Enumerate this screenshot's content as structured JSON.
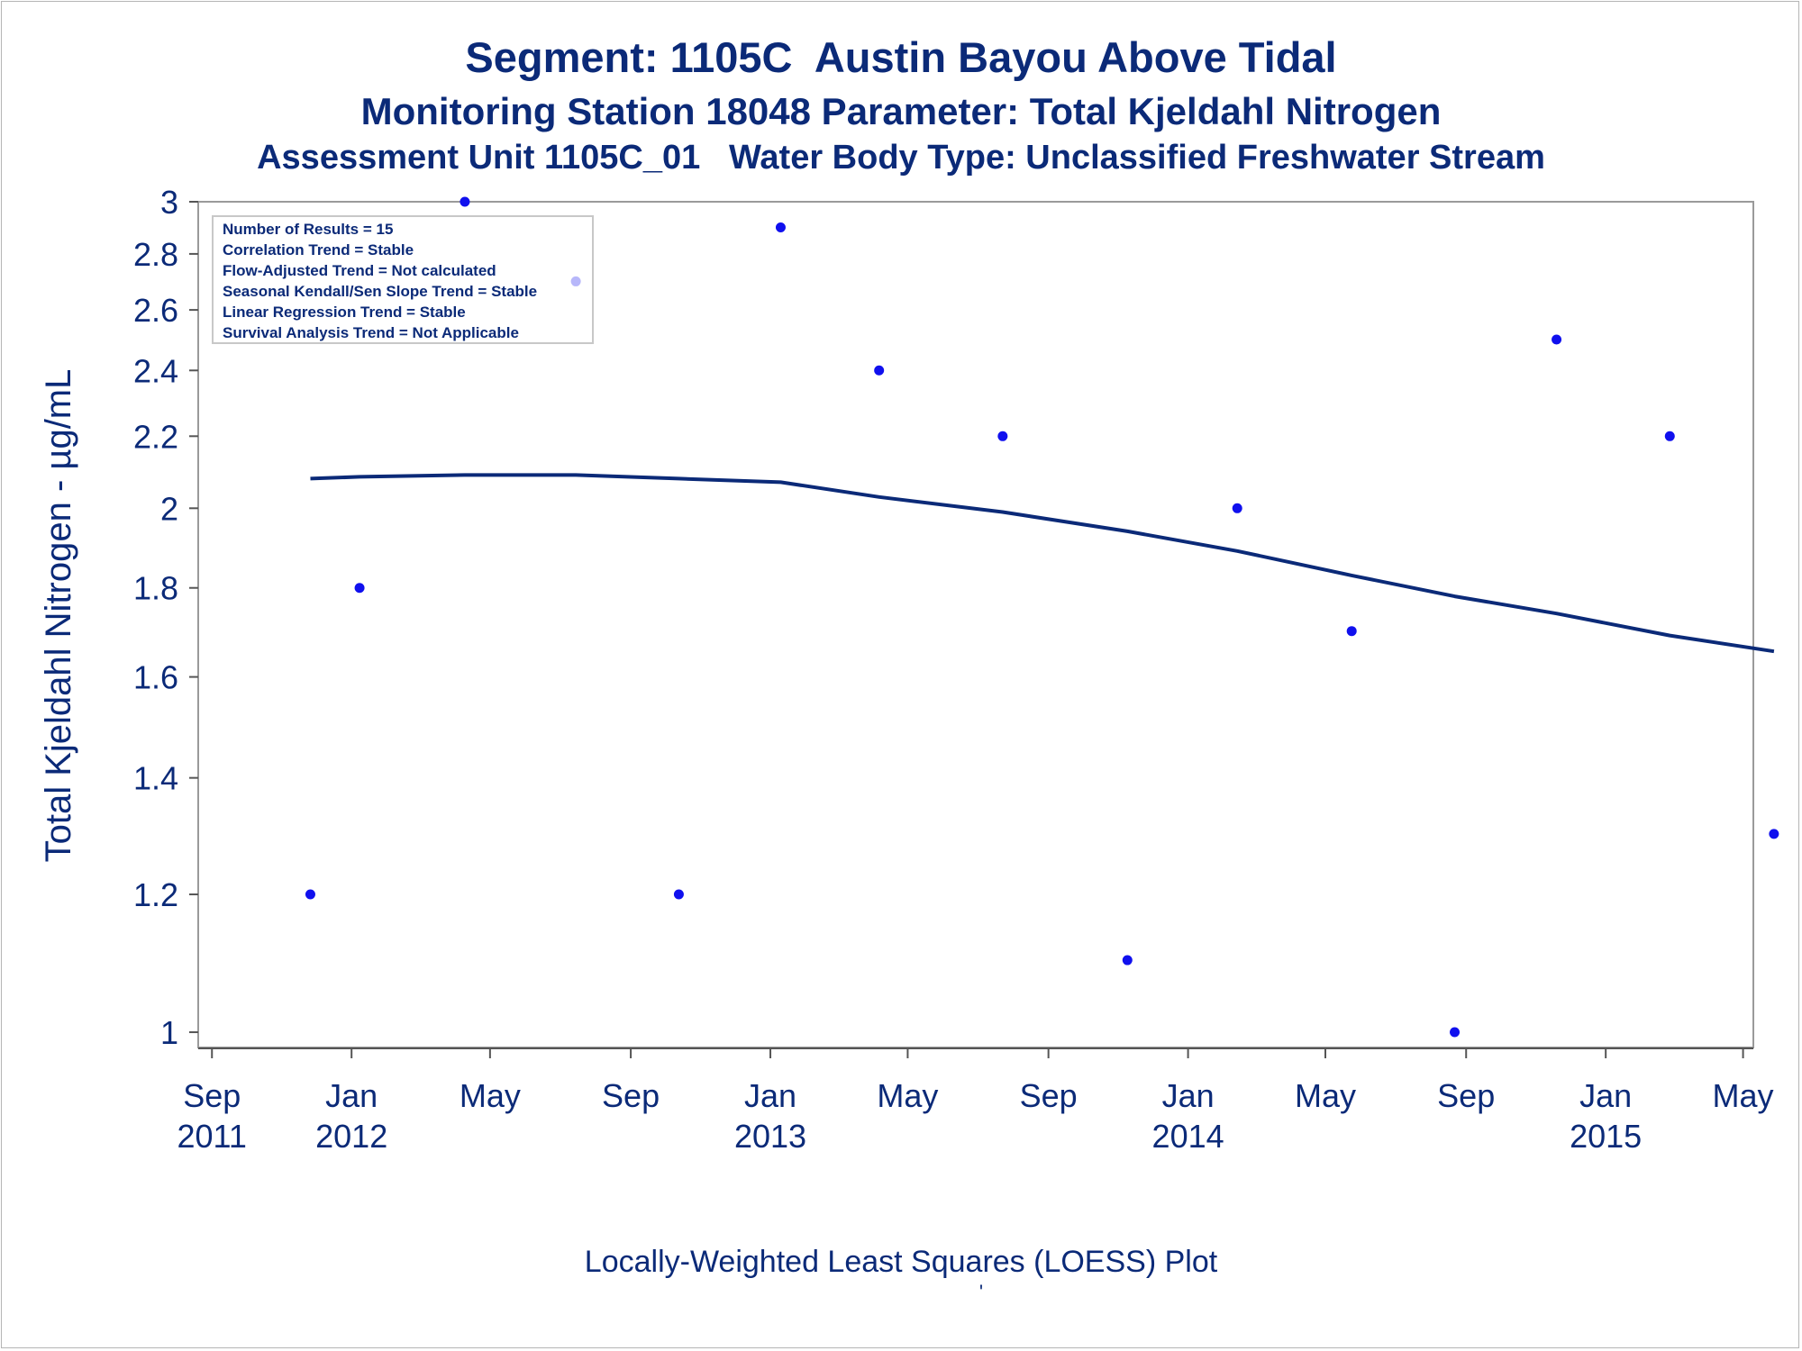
{
  "titles": {
    "line1": "Segment: 1105C  Austin Bayou Above Tidal",
    "line2": "Monitoring Station 18048 Parameter: Total Kjeldahl Nitrogen",
    "line3": "Assessment Unit 1105C_01   Water Body Type: Unclassified Freshwater Stream"
  },
  "footer": {
    "label": "Locally-Weighted Least Squares (LOESS) Plot",
    "mark": "'"
  },
  "stats_box": {
    "lines": [
      "Number of Results = 15",
      "Correlation Trend = Stable",
      "Flow-Adjusted Trend = Not calculated",
      "Seasonal Kendall/Sen Slope Trend = Stable",
      "Linear Regression Trend = Stable",
      "Survival Analysis Trend = Not Applicable"
    ]
  },
  "colors": {
    "text": "#0b2a78",
    "points": "#1010ee",
    "loess_line": "#0b2a78",
    "frame": "#9a9a9a"
  },
  "chart_data": {
    "type": "scatter",
    "title": "Segment: 1105C  Austin Bayou Above Tidal",
    "xlabel": "",
    "ylabel": "Total Kjeldahl Nitrogen -  µg/mL",
    "y_scale": "log",
    "ylim": [
      0.98,
      3.0
    ],
    "xlim": [
      "2011-08-20",
      "2015-05-10"
    ],
    "grid": false,
    "y_ticks": [
      "1",
      "1.2",
      "1.4",
      "1.6",
      "1.8",
      "2",
      "2.2",
      "2.4",
      "2.6",
      "2.8",
      "3"
    ],
    "x_ticks": [
      {
        "date": "2011-09-01",
        "label": [
          "Sep",
          "2011"
        ]
      },
      {
        "date": "2012-01-01",
        "label": [
          "Jan",
          "2012"
        ]
      },
      {
        "date": "2012-05-01",
        "label": [
          "May",
          ""
        ]
      },
      {
        "date": "2012-09-01",
        "label": [
          "Sep",
          ""
        ]
      },
      {
        "date": "2013-01-01",
        "label": [
          "Jan",
          "2013"
        ]
      },
      {
        "date": "2013-05-01",
        "label": [
          "May",
          ""
        ]
      },
      {
        "date": "2013-09-01",
        "label": [
          "Sep",
          ""
        ]
      },
      {
        "date": "2014-01-01",
        "label": [
          "Jan",
          "2014"
        ]
      },
      {
        "date": "2014-05-01",
        "label": [
          "May",
          ""
        ]
      },
      {
        "date": "2014-09-01",
        "label": [
          "Sep",
          ""
        ]
      },
      {
        "date": "2015-01-01",
        "label": [
          "Jan",
          "2015"
        ]
      },
      {
        "date": "2015-05-01",
        "label": [
          "May",
          ""
        ]
      }
    ],
    "series": [
      {
        "type": "scatter",
        "points": [
          {
            "x": "2011-11-26",
            "y": 1.2
          },
          {
            "x": "2012-01-08",
            "y": 1.8
          },
          {
            "x": "2012-04-09",
            "y": 3.0
          },
          {
            "x": "2012-07-15",
            "y": 2.7
          },
          {
            "x": "2012-10-13",
            "y": 1.2
          },
          {
            "x": "2013-01-10",
            "y": 2.9
          },
          {
            "x": "2013-04-06",
            "y": 2.4
          },
          {
            "x": "2013-07-23",
            "y": 2.2
          },
          {
            "x": "2013-11-09",
            "y": 1.1
          },
          {
            "x": "2014-02-13",
            "y": 2.0
          },
          {
            "x": "2014-05-24",
            "y": 1.7
          },
          {
            "x": "2014-08-22",
            "y": 1.0
          },
          {
            "x": "2014-11-19",
            "y": 2.5
          },
          {
            "x": "2015-02-26",
            "y": 2.2
          },
          {
            "x": "2015-05-28",
            "y": 1.3
          }
        ]
      },
      {
        "type": "line",
        "points": [
          {
            "x": "2011-11-26",
            "y": 2.08
          },
          {
            "x": "2012-01-08",
            "y": 2.085
          },
          {
            "x": "2012-04-09",
            "y": 2.09
          },
          {
            "x": "2012-07-15",
            "y": 2.09
          },
          {
            "x": "2012-10-13",
            "y": 2.08
          },
          {
            "x": "2013-01-10",
            "y": 2.07
          },
          {
            "x": "2013-04-06",
            "y": 2.03
          },
          {
            "x": "2013-07-23",
            "y": 1.99
          },
          {
            "x": "2013-11-09",
            "y": 1.94
          },
          {
            "x": "2014-02-13",
            "y": 1.89
          },
          {
            "x": "2014-05-24",
            "y": 1.83
          },
          {
            "x": "2014-08-22",
            "y": 1.78
          },
          {
            "x": "2014-11-19",
            "y": 1.74
          },
          {
            "x": "2015-02-26",
            "y": 1.69
          },
          {
            "x": "2015-05-28",
            "y": 1.655
          }
        ]
      }
    ]
  }
}
